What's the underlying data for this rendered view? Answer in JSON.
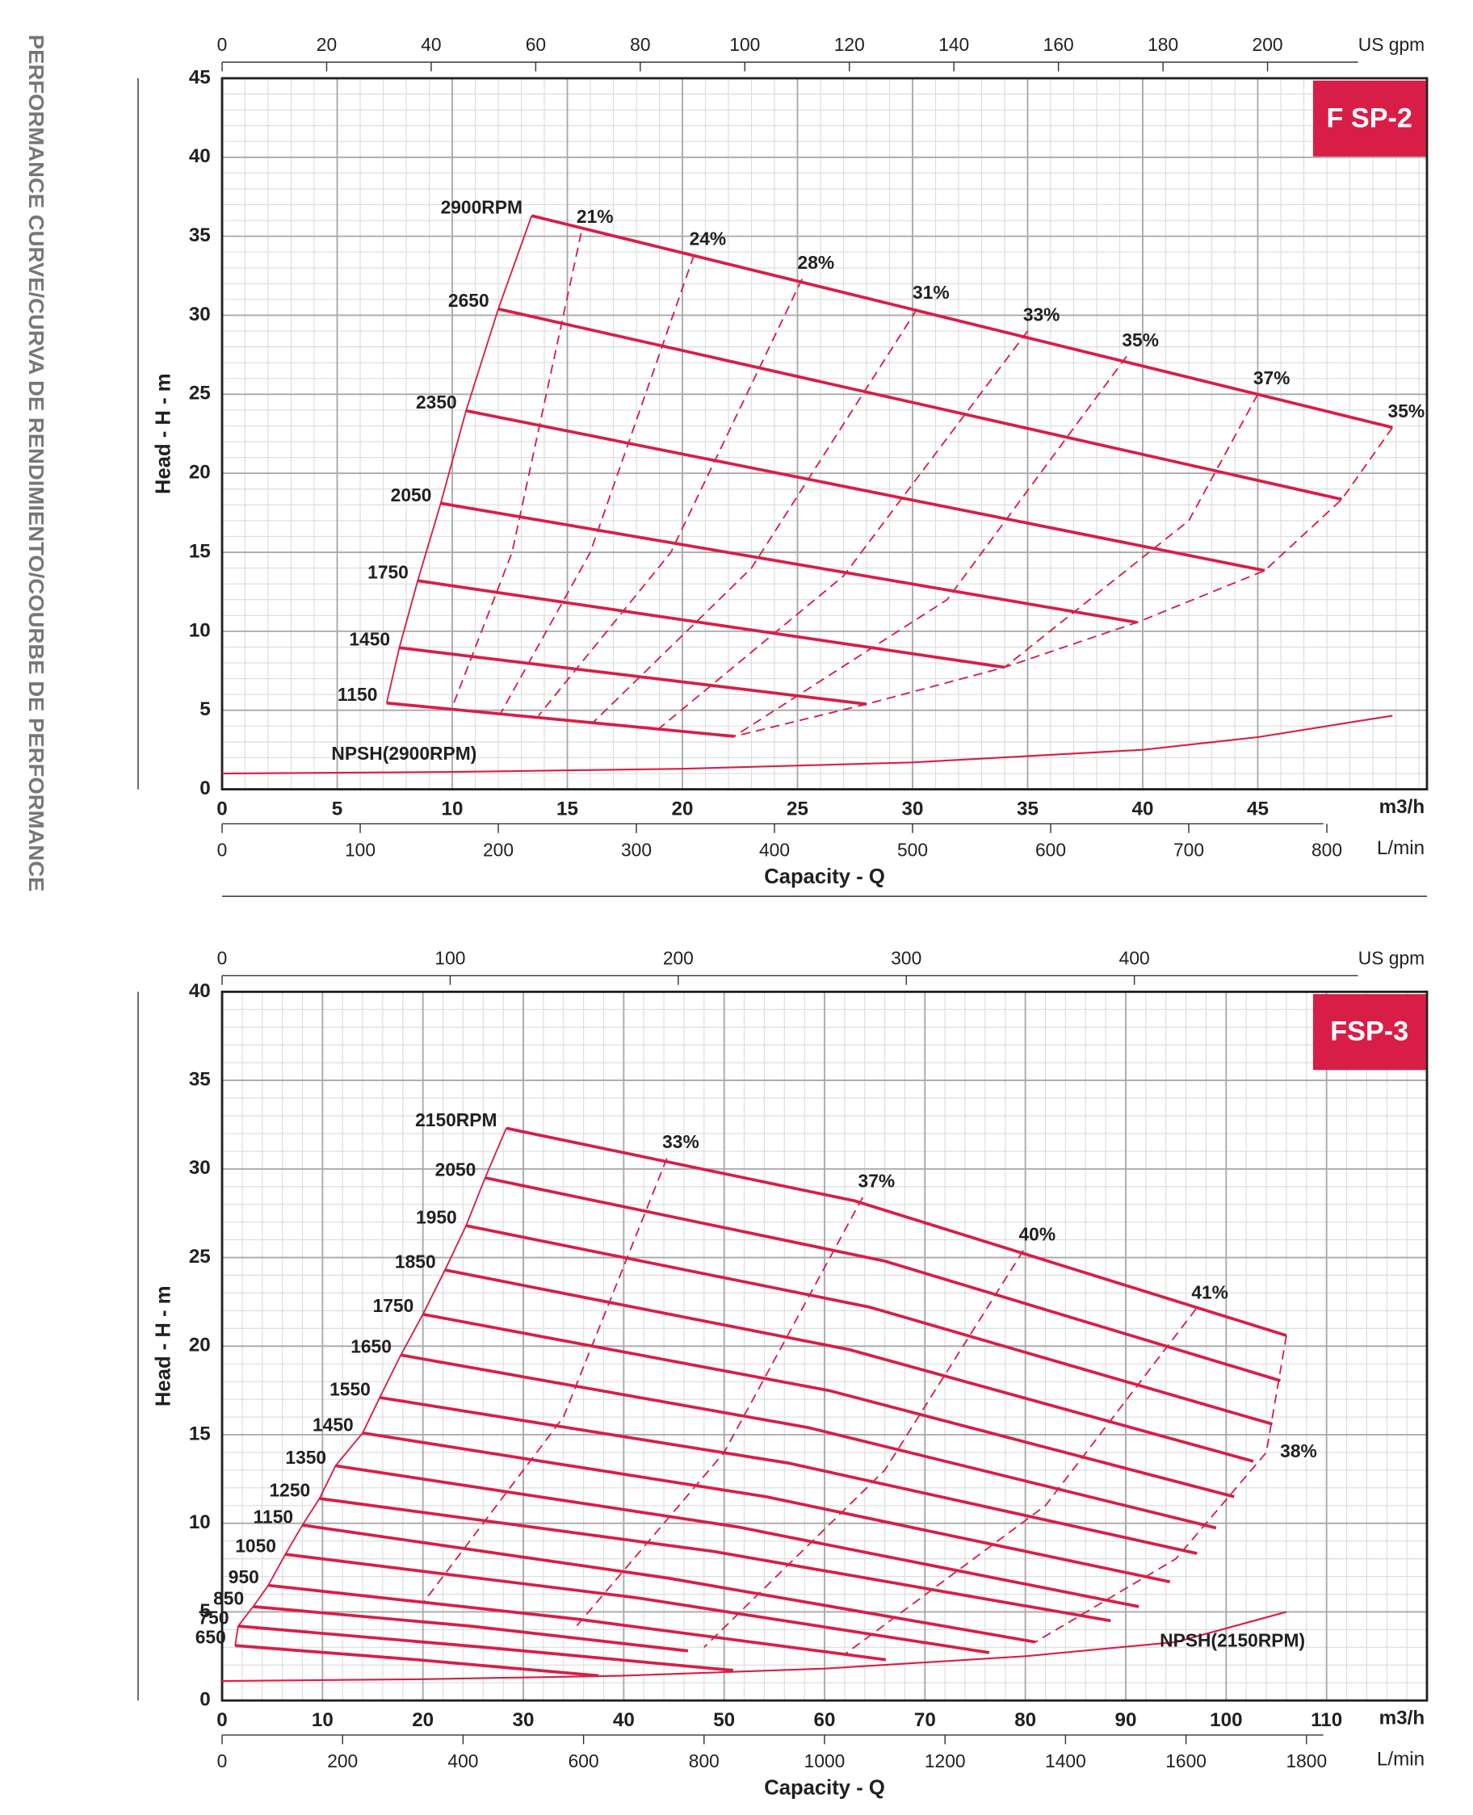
{
  "side_title": "PERFORMANCE CURVE/CURVA DE RENDIMIENTO/COURBE DE PERFORMANCE",
  "chart_data": [
    {
      "type": "line",
      "badge": "F SP-2",
      "xlabel": "Capacity - Q",
      "ylabel": "Head  -  H - m",
      "x_unit": "m3/h",
      "x2_unit": "L/min",
      "x3_unit": "US gpm",
      "xlim": [
        0,
        52.35
      ],
      "xticks": [
        0,
        5,
        10,
        15,
        20,
        25,
        30,
        35,
        40,
        45
      ],
      "x2lim": [
        0,
        872.5
      ],
      "x2ticks": [
        0,
        100,
        200,
        300,
        400,
        500,
        600,
        700,
        800
      ],
      "x3lim": [
        0,
        230.5
      ],
      "x3ticks": [
        0,
        20,
        40,
        60,
        80,
        100,
        120,
        140,
        160,
        180,
        200
      ],
      "ylim": [
        0,
        45
      ],
      "yticks": [
        0,
        5,
        10,
        15,
        20,
        25,
        30,
        35,
        40,
        45
      ],
      "grid": true,
      "x_minor_step": 1,
      "y_minor_step": 1,
      "series": [
        {
          "name": "2900RPM",
          "style": "solid",
          "color": "#d81e46",
          "x": [
            13.45,
            50.85
          ],
          "values": [
            36.3,
            22.9
          ]
        },
        {
          "name": "2650",
          "style": "solid",
          "color": "#d81e46",
          "x": [
            12.0,
            48.65
          ],
          "values": [
            30.4,
            18.35
          ]
        },
        {
          "name": "2350",
          "style": "solid",
          "color": "#d81e46",
          "x": [
            10.6,
            45.3
          ],
          "values": [
            23.96,
            13.84
          ]
        },
        {
          "name": "2050",
          "style": "solid",
          "color": "#d81e46",
          "x": [
            9.5,
            39.75
          ],
          "values": [
            18.1,
            10.56
          ]
        },
        {
          "name": "1750",
          "style": "solid",
          "color": "#d81e46",
          "x": [
            8.5,
            34.0
          ],
          "values": [
            13.2,
            7.72
          ]
        },
        {
          "name": "1450",
          "style": "solid",
          "color": "#d81e46",
          "x": [
            7.7,
            28.0
          ],
          "values": [
            8.96,
            5.39
          ]
        },
        {
          "name": "1150",
          "style": "solid",
          "color": "#d81e46",
          "x": [
            7.15,
            22.25
          ],
          "values": [
            5.46,
            3.35
          ]
        },
        {
          "name": "21%",
          "style": "dashed",
          "color": "#d81e46",
          "x": [
            15.6,
            12.6,
            10.0
          ],
          "values": [
            35.2,
            15,
            5.2
          ]
        },
        {
          "name": "24%",
          "style": "dashed",
          "color": "#d81e46",
          "x": [
            20.5,
            16,
            12.1
          ],
          "values": [
            33.8,
            15,
            4.8
          ]
        },
        {
          "name": "28%",
          "style": "dashed",
          "color": "#d81e46",
          "x": [
            25.2,
            19.5,
            13.75
          ],
          "values": [
            32.3,
            15,
            4.66
          ]
        },
        {
          "name": "31%",
          "style": "dashed",
          "color": "#d81e46",
          "x": [
            30.2,
            23,
            16.1
          ],
          "values": [
            30.4,
            14,
            4.2
          ]
        },
        {
          "name": "33%",
          "style": "dashed",
          "color": "#d81e46",
          "x": [
            35.0,
            27,
            19.0
          ],
          "values": [
            29.0,
            13.5,
            3.86
          ]
        },
        {
          "name": "35%",
          "style": "dashed",
          "color": "#d81e46",
          "x": [
            39.3,
            31.5,
            22.25
          ],
          "values": [
            27.4,
            12,
            3.35
          ]
        },
        {
          "name": "37%",
          "style": "dashed",
          "color": "#d81e46",
          "x": [
            45.0,
            42,
            34.0
          ],
          "values": [
            25.0,
            17,
            7.72
          ]
        },
        {
          "name": "35%",
          "style": "dashed",
          "color": "#d81e46",
          "x": [
            50.85,
            48.65,
            45.3,
            39.75,
            34.0,
            28.0,
            22.25
          ],
          "values": [
            22.9,
            18.35,
            13.84,
            10.56,
            7.72,
            5.39,
            3.35
          ]
        },
        {
          "name": "NPSH(2900RPM)",
          "style": "thin",
          "color": "#d81e46",
          "x": [
            0,
            10,
            20,
            30,
            40,
            45,
            50.85
          ],
          "values": [
            1.0,
            1.1,
            1.3,
            1.7,
            2.5,
            3.3,
            4.66
          ]
        }
      ]
    },
    {
      "type": "line",
      "badge": "FSP-3",
      "xlabel": "Capacity - Q",
      "ylabel": "Head  -  H - m",
      "x_unit": "m3/h",
      "x2_unit": "L/min",
      "x3_unit": "US gpm",
      "xlim": [
        0,
        120
      ],
      "xticks": [
        0,
        10,
        20,
        30,
        40,
        50,
        60,
        70,
        80,
        90,
        100,
        110
      ],
      "x2lim": [
        0,
        2000
      ],
      "x2ticks": [
        0,
        200,
        400,
        600,
        800,
        1000,
        1200,
        1400,
        1600,
        1800
      ],
      "x3lim": [
        0,
        528.3
      ],
      "x3ticks": [
        0,
        100,
        200,
        300,
        400
      ],
      "ylim": [
        0,
        40
      ],
      "yticks": [
        0,
        5,
        10,
        15,
        20,
        25,
        30,
        35,
        40
      ],
      "grid": true,
      "x_minor_step": 2,
      "y_minor_step": 1,
      "series": [
        {
          "name": "2150RPM",
          "style": "solid",
          "color": "#d81e46",
          "x": [
            28.3,
            63,
            106.0
          ],
          "values": [
            32.3,
            28.2,
            20.6
          ]
        },
        {
          "name": "2050",
          "style": "solid",
          "color": "#d81e46",
          "x": [
            26.2,
            66,
            105.4
          ],
          "values": [
            29.5,
            24.8,
            18.05
          ]
        },
        {
          "name": "1950",
          "style": "solid",
          "color": "#d81e46",
          "x": [
            24.3,
            64.5,
            104.6
          ],
          "values": [
            26.8,
            22.2,
            15.6
          ]
        },
        {
          "name": "1850",
          "style": "solid",
          "color": "#d81e46",
          "x": [
            22.2,
            62.5,
            102.7
          ],
          "values": [
            24.3,
            19.8,
            13.5
          ]
        },
        {
          "name": "1750",
          "style": "solid",
          "color": "#d81e46",
          "x": [
            20.0,
            60.4,
            100.8
          ],
          "values": [
            21.8,
            17.5,
            11.5
          ]
        },
        {
          "name": "1650",
          "style": "solid",
          "color": "#d81e46",
          "x": [
            17.8,
            58.4,
            99.0
          ],
          "values": [
            19.5,
            15.4,
            9.74
          ]
        },
        {
          "name": "1550",
          "style": "solid",
          "color": "#d81e46",
          "x": [
            15.7,
            56.4,
            97.1
          ],
          "values": [
            17.1,
            13.4,
            8.3
          ]
        },
        {
          "name": "1450",
          "style": "solid",
          "color": "#d81e46",
          "x": [
            14.0,
            54.2,
            94.4
          ],
          "values": [
            15.1,
            11.5,
            6.7
          ]
        },
        {
          "name": "1350",
          "style": "solid",
          "color": "#d81e46",
          "x": [
            11.3,
            51.3,
            91.3
          ],
          "values": [
            13.25,
            9.8,
            5.3
          ]
        },
        {
          "name": "1250",
          "style": "solid",
          "color": "#d81e46",
          "x": [
            9.7,
            49.1,
            88.5
          ],
          "values": [
            11.4,
            8.4,
            4.5
          ]
        },
        {
          "name": "1150",
          "style": "solid",
          "color": "#d81e46",
          "x": [
            8.0,
            44.5,
            81.0
          ],
          "values": [
            9.9,
            6.9,
            3.3
          ]
        },
        {
          "name": "1050",
          "style": "solid",
          "color": "#d81e46",
          "x": [
            6.3,
            41.3,
            76.4
          ],
          "values": [
            8.25,
            5.8,
            2.7
          ]
        },
        {
          "name": "950",
          "style": "solid",
          "color": "#d81e46",
          "x": [
            4.6,
            35.3,
            66.1
          ],
          "values": [
            6.5,
            4.6,
            2.3
          ]
        },
        {
          "name": "850",
          "style": "solid",
          "color": "#d81e46",
          "x": [
            3.1,
            24.7,
            46.4
          ],
          "values": [
            5.3,
            4.2,
            2.8
          ]
        },
        {
          "name": "750",
          "style": "solid",
          "color": "#d81e46",
          "x": [
            1.6,
            26.2,
            50.9
          ],
          "values": [
            4.2,
            3.0,
            1.7
          ]
        },
        {
          "name": "650",
          "style": "solid",
          "color": "#d81e46",
          "x": [
            1.3,
            19.4,
            37.5
          ],
          "values": [
            3.1,
            2.3,
            1.4
          ]
        },
        {
          "name": "33%",
          "style": "dashed",
          "color": "#d81e46",
          "x": [
            44.3,
            34,
            20
          ],
          "values": [
            30.6,
            16,
            5.5
          ]
        },
        {
          "name": "37%",
          "style": "dashed",
          "color": "#d81e46",
          "x": [
            63.8,
            50,
            35
          ],
          "values": [
            28.4,
            14,
            4
          ]
        },
        {
          "name": "40%",
          "style": "dashed",
          "color": "#d81e46",
          "x": [
            79.8,
            66,
            48
          ],
          "values": [
            25.4,
            13,
            3
          ]
        },
        {
          "name": "41%",
          "style": "dashed",
          "color": "#d81e46",
          "x": [
            97.0,
            82,
            62
          ],
          "values": [
            22.1,
            11,
            2.6
          ]
        },
        {
          "name": "38%",
          "style": "dashed",
          "color": "#d81e46",
          "x": [
            106.0,
            104,
            95,
            81.0
          ],
          "values": [
            20.6,
            14,
            8,
            3.3
          ]
        },
        {
          "name": "NPSH(2150RPM)",
          "style": "thin",
          "color": "#d81e46",
          "x": [
            0,
            20,
            40,
            60,
            80,
            95,
            106
          ],
          "values": [
            1.1,
            1.2,
            1.4,
            1.8,
            2.5,
            3.3,
            5.0
          ]
        }
      ]
    }
  ]
}
